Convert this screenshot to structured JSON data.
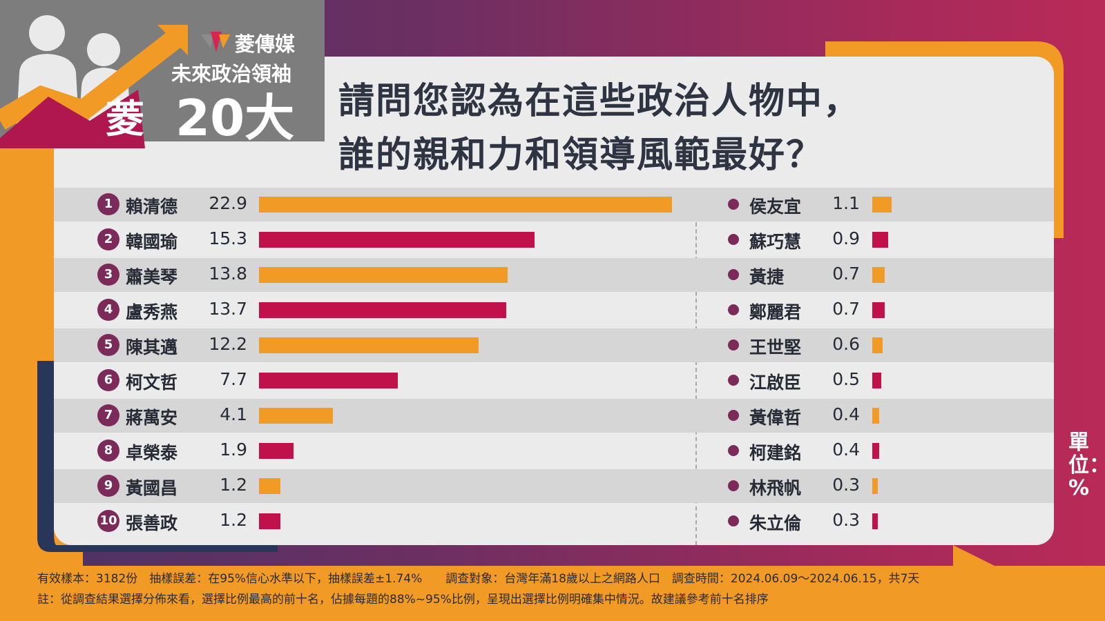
{
  "logo": {
    "brand": "菱傳媒",
    "series": "未來政治領袖",
    "badge_char": "菱",
    "badge_number": "20大"
  },
  "title": {
    "line1": "請問您認為在這些政治人物中，",
    "line2": "誰的親和力和領導風範最好？"
  },
  "unit_label": "單位：%",
  "colors": {
    "orange": "#f29a26",
    "crimson": "#c0114a",
    "rank_circle": "#7b2a59"
  },
  "chart_data": {
    "type": "bar",
    "orientation": "horizontal",
    "unit": "%",
    "top10": {
      "ranks": [
        "1",
        "2",
        "3",
        "4",
        "5",
        "6",
        "7",
        "8",
        "9",
        "10"
      ],
      "categories": [
        "賴清德",
        "韓國瑜",
        "蕭美琴",
        "盧秀燕",
        "陳其邁",
        "柯文哲",
        "蔣萬安",
        "卓榮泰",
        "黃國昌",
        "張善政"
      ],
      "values": [
        22.9,
        15.3,
        13.8,
        13.7,
        12.2,
        7.7,
        4.1,
        1.9,
        1.2,
        1.2
      ]
    },
    "others": {
      "categories": [
        "侯友宜",
        "蘇巧慧",
        "黃捷",
        "鄭麗君",
        "王世堅",
        "江啟臣",
        "黃偉哲",
        "柯建銘",
        "林飛帆",
        "朱立倫"
      ],
      "values": [
        1.1,
        0.9,
        0.7,
        0.7,
        0.6,
        0.5,
        0.4,
        0.4,
        0.3,
        0.3
      ]
    }
  },
  "footer": {
    "line1": "有效樣本：3182份　抽樣誤差：在95%信心水準以下，抽樣誤差±1.74%　　調查對象：台灣年滿18歲以上之網路人口　調查時間：2024.06.09～2024.06.15，共7天",
    "line2": "註：從調查結果選擇分佈來看，選擇比例最高的前十名，佔據每題的88%~95%比例，呈現出選擇比例明確集中情況。故建議參考前十名排序"
  }
}
